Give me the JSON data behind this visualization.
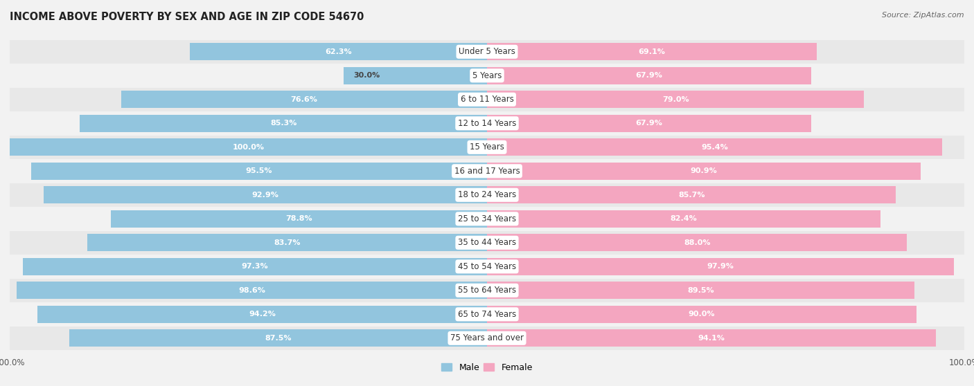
{
  "title": "INCOME ABOVE POVERTY BY SEX AND AGE IN ZIP CODE 54670",
  "source": "Source: ZipAtlas.com",
  "categories": [
    "Under 5 Years",
    "5 Years",
    "6 to 11 Years",
    "12 to 14 Years",
    "15 Years",
    "16 and 17 Years",
    "18 to 24 Years",
    "25 to 34 Years",
    "35 to 44 Years",
    "45 to 54 Years",
    "55 to 64 Years",
    "65 to 74 Years",
    "75 Years and over"
  ],
  "male_values": [
    62.3,
    30.0,
    76.6,
    85.3,
    100.0,
    95.5,
    92.9,
    78.8,
    83.7,
    97.3,
    98.6,
    94.2,
    87.5
  ],
  "female_values": [
    69.1,
    67.9,
    79.0,
    67.9,
    95.4,
    90.9,
    85.7,
    82.4,
    88.0,
    97.9,
    89.5,
    90.0,
    94.1
  ],
  "male_color": "#92c5de",
  "female_color": "#f4a6c0",
  "row_bg_odd": "#e8e8e8",
  "row_bg_even": "#f2f2f2",
  "bar_bg": "#ffffff",
  "background_color": "#f2f2f2",
  "title_fontsize": 10.5,
  "label_fontsize": 8.5,
  "value_fontsize": 8,
  "legend_fontsize": 9,
  "source_fontsize": 8
}
